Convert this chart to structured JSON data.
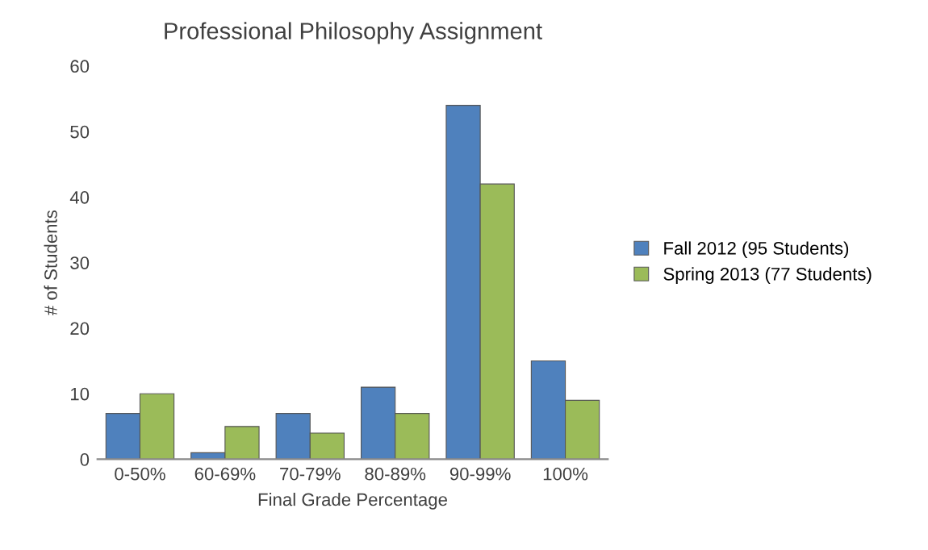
{
  "chart_data": {
    "type": "bar",
    "title": "Professional Philosophy Assignment",
    "xlabel": "Final Grade Percentage",
    "ylabel": "# of Students",
    "categories": [
      "0-50%",
      "60-69%",
      "70-79%",
      "80-89%",
      "90-99%",
      "100%"
    ],
    "series": [
      {
        "name": "Fall 2012 (95 Students)",
        "color": "#4f81bd",
        "values": [
          7,
          1,
          7,
          11,
          54,
          15
        ]
      },
      {
        "name": "Spring 2013 (77 Students)",
        "color": "#9bbb59",
        "values": [
          10,
          5,
          4,
          7,
          42,
          9
        ]
      }
    ],
    "ylim": [
      0,
      60
    ],
    "yticks": [
      0,
      10,
      20,
      30,
      40,
      50,
      60
    ],
    "grid": false,
    "legend": "right"
  }
}
